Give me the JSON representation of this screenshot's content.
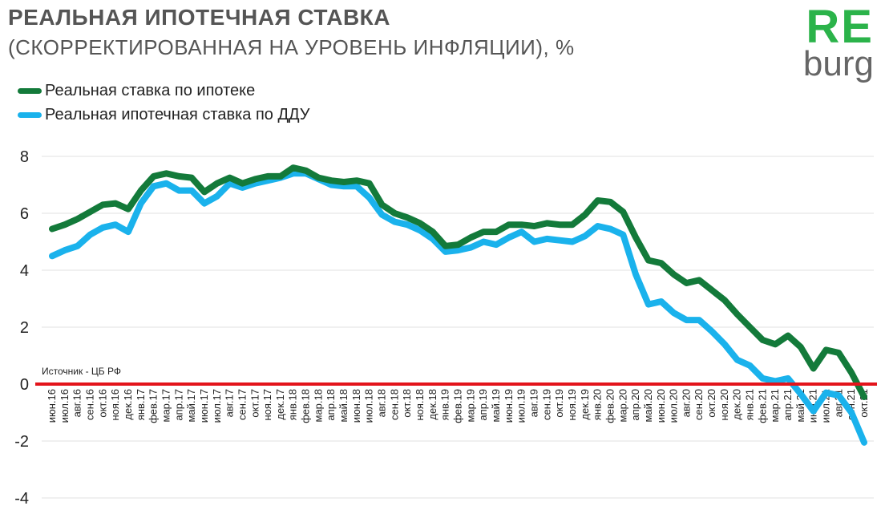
{
  "chart_data": {
    "type": "line",
    "title": "РЕАЛЬНАЯ ИПОТЕЧНАЯ СТАВКА",
    "subtitle": "(СКОРРЕКТИРОВАННАЯ НА УРОВЕНЬ  ИНФЛЯЦИИ), %",
    "source": "Источник  - ЦБ РФ",
    "ylim": [
      -4,
      8
    ],
    "yticks": [
      8,
      6,
      4,
      2,
      0,
      -2,
      -4
    ],
    "zero_line_color": "#e3141b",
    "grid": true,
    "legend_position": "top-left",
    "categories": [
      "июн.16",
      "июл.16",
      "авг.16",
      "сен.16",
      "окт.16",
      "ноя.16",
      "дек.16",
      "янв.17",
      "фев.17",
      "мар.17",
      "апр.17",
      "май.17",
      "июн.17",
      "июл.17",
      "авг.17",
      "сен.17",
      "окт.17",
      "ноя.17",
      "дек.17",
      "янв.18",
      "фев.18",
      "мар.18",
      "апр.18",
      "май.18",
      "июн.18",
      "июл.18",
      "авг.18",
      "сен.18",
      "окт.18",
      "ноя.18",
      "дек.18",
      "янв.19",
      "фев.19",
      "мар.19",
      "апр.19",
      "май.19",
      "июн.19",
      "июл.19",
      "авг.19",
      "сен.19",
      "окт.19",
      "ноя.19",
      "дек.19",
      "янв.20",
      "фев.20",
      "мар.20",
      "апр.20",
      "май.20",
      "июн.20",
      "июл.20",
      "авг.20",
      "сен.20",
      "окт.20",
      "ноя.20",
      "дек.20",
      "янв.21",
      "фев.21",
      "мар.21",
      "апр.21",
      "май.21",
      "июн.21",
      "июл.21",
      "авг.21",
      "сен.21",
      "окт.21"
    ],
    "series": [
      {
        "name": "Реальная ставка по ипотеке",
        "color": "#137a3a",
        "values": [
          5.45,
          5.6,
          5.8,
          6.05,
          6.3,
          6.35,
          6.15,
          6.8,
          7.3,
          7.4,
          7.3,
          7.25,
          6.75,
          7.05,
          7.25,
          7.05,
          7.2,
          7.3,
          7.3,
          7.6,
          7.5,
          7.25,
          7.15,
          7.1,
          7.15,
          7.05,
          6.3,
          6.0,
          5.85,
          5.65,
          5.35,
          4.85,
          4.9,
          5.15,
          5.35,
          5.35,
          5.6,
          5.6,
          5.55,
          5.65,
          5.6,
          5.6,
          5.95,
          6.45,
          6.4,
          6.05,
          5.15,
          4.35,
          4.25,
          3.85,
          3.55,
          3.65,
          3.3,
          2.95,
          2.45,
          2.0,
          1.55,
          1.4,
          1.7,
          1.3,
          0.55,
          1.2,
          1.1,
          0.4,
          -0.45
        ]
      },
      {
        "name": "Реальная ипотечная ставка по ДДУ",
        "color": "#1ab2ec",
        "values": [
          4.5,
          4.7,
          4.85,
          5.25,
          5.5,
          5.6,
          5.35,
          6.35,
          6.95,
          7.05,
          6.8,
          6.8,
          6.35,
          6.6,
          7.05,
          6.9,
          7.05,
          7.15,
          7.25,
          7.4,
          7.4,
          7.2,
          7.0,
          6.95,
          6.95,
          6.55,
          5.95,
          5.7,
          5.6,
          5.4,
          5.1,
          4.65,
          4.7,
          4.8,
          5.0,
          4.9,
          5.15,
          5.35,
          5.0,
          5.1,
          5.05,
          5.0,
          5.2,
          5.55,
          5.45,
          5.25,
          3.85,
          2.8,
          2.9,
          2.5,
          2.25,
          2.25,
          1.85,
          1.4,
          0.85,
          0.65,
          0.2,
          0.1,
          0.2,
          -0.35,
          -0.95,
          -0.3,
          -0.4,
          -1.0,
          -2.05
        ]
      }
    ]
  },
  "logo": {
    "line1": "RE",
    "line2": "burg"
  }
}
